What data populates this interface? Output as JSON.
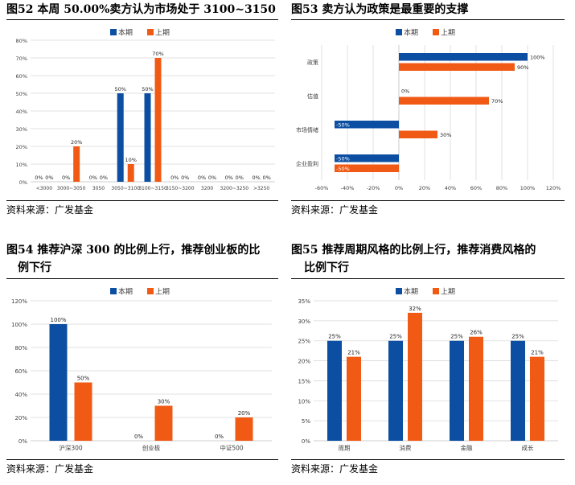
{
  "colors": {
    "current": "#0b4ea2",
    "previous": "#f05a14",
    "grid": "#d9d9d9",
    "axis": "#bfbfbf"
  },
  "source_label": "资料来源：广发基金",
  "chart_data": [
    {
      "id": "fig52",
      "type": "bar",
      "title": "图52 本周 50.00%卖方认为市场处于 3100~3150",
      "title_lines": [
        "图52 本周 50.00%卖方认为市场处于 3100~3150"
      ],
      "orientation": "vertical",
      "categories": [
        "<3000",
        "3000~3050",
        "3050",
        "3050~3100",
        "3100~3150",
        "3150~3200",
        "3200",
        "3200~3250",
        ">3250"
      ],
      "series": [
        {
          "name": "本期",
          "values": [
            0,
            0,
            0,
            50,
            50,
            0,
            0,
            0,
            0
          ]
        },
        {
          "name": "上期",
          "values": [
            0,
            20,
            0,
            10,
            70,
            0,
            0,
            0,
            0
          ]
        }
      ],
      "value_labels": [
        [
          "0%",
          "0%",
          "0%",
          "50%",
          "50%",
          "0%",
          "0%",
          "0%",
          "0%"
        ],
        [
          "0%",
          "20%",
          "0%",
          "10%",
          "70%",
          "0%",
          "0%",
          "0%",
          "0%"
        ]
      ],
      "ticks": [
        0,
        10,
        20,
        30,
        40,
        50,
        60,
        70,
        80
      ],
      "tick_labels": [
        "0%",
        "10%",
        "20%",
        "30%",
        "40%",
        "50%",
        "60%",
        "70%",
        "80%"
      ],
      "ylim": [
        0,
        80
      ],
      "legend": "top-center",
      "grid": true,
      "source": "资料来源：广发基金"
    },
    {
      "id": "fig53",
      "type": "bar",
      "title": "图53 卖方认为政策是最重要的支撑",
      "title_lines": [
        "图53 卖方认为政策是最重要的支撑"
      ],
      "orientation": "horizontal",
      "categories": [
        "政策",
        "估值",
        "市场情绪",
        "企业盈利"
      ],
      "series": [
        {
          "name": "本期",
          "values": [
            100,
            0,
            -50,
            -50
          ]
        },
        {
          "name": "上期",
          "values": [
            90,
            70,
            30,
            -50
          ]
        }
      ],
      "value_labels": [
        [
          "100%",
          "0%",
          "-50%",
          "-50%"
        ],
        [
          "90%",
          "70%",
          "30%",
          "-50%"
        ]
      ],
      "ticks": [
        -60,
        -40,
        -20,
        0,
        20,
        40,
        60,
        80,
        100,
        120
      ],
      "tick_labels": [
        "-60%",
        "-40%",
        "-20%",
        "0%",
        "20%",
        "40%",
        "60%",
        "80%",
        "100%",
        "120%"
      ],
      "xlim": [
        -60,
        120
      ],
      "legend": "top-center",
      "grid": true,
      "source": "资料来源：广发基金"
    },
    {
      "id": "fig54",
      "type": "bar",
      "title": "图54 推荐沪深 300 的比例上行，推荐创业板的比例下行",
      "title_lines": [
        "图54 推荐沪深 300 的比例上行，推荐创业板的比",
        "例下行"
      ],
      "orientation": "vertical",
      "categories": [
        "沪深300",
        "创业板",
        "中证500"
      ],
      "series": [
        {
          "name": "本期",
          "values": [
            100,
            0,
            0
          ]
        },
        {
          "name": "上期",
          "values": [
            50,
            30,
            20
          ]
        }
      ],
      "value_labels": [
        [
          "100%",
          "0%",
          "0%"
        ],
        [
          "50%",
          "30%",
          "20%"
        ]
      ],
      "ticks": [
        0,
        20,
        40,
        60,
        80,
        100,
        120
      ],
      "tick_labels": [
        "0%",
        "20%",
        "40%",
        "60%",
        "80%",
        "100%",
        "120%"
      ],
      "ylim": [
        0,
        120
      ],
      "legend": "top-center",
      "grid": true,
      "source": "资料来源：广发基金"
    },
    {
      "id": "fig55",
      "type": "bar",
      "title": "图55 推荐周期风格的比例上行，推荐消费风格的比例下行",
      "title_lines": [
        "图55 推荐周期风格的比例上行，推荐消费风格的",
        "比例下行"
      ],
      "orientation": "vertical",
      "categories": [
        "周期",
        "消费",
        "金融",
        "成长"
      ],
      "series": [
        {
          "name": "本期",
          "values": [
            25,
            25,
            25,
            25
          ]
        },
        {
          "name": "上期",
          "values": [
            21,
            32,
            26,
            21
          ]
        }
      ],
      "value_labels": [
        [
          "25%",
          "25%",
          "25%",
          "25%"
        ],
        [
          "21%",
          "32%",
          "26%",
          "21%"
        ]
      ],
      "ticks": [
        0,
        5,
        10,
        15,
        20,
        25,
        30,
        35
      ],
      "tick_labels": [
        "0%",
        "5%",
        "10%",
        "15%",
        "20%",
        "25%",
        "30%",
        "35%"
      ],
      "ylim": [
        0,
        35
      ],
      "legend": "top-center",
      "grid": true,
      "source": "资料来源：广发基金"
    }
  ]
}
